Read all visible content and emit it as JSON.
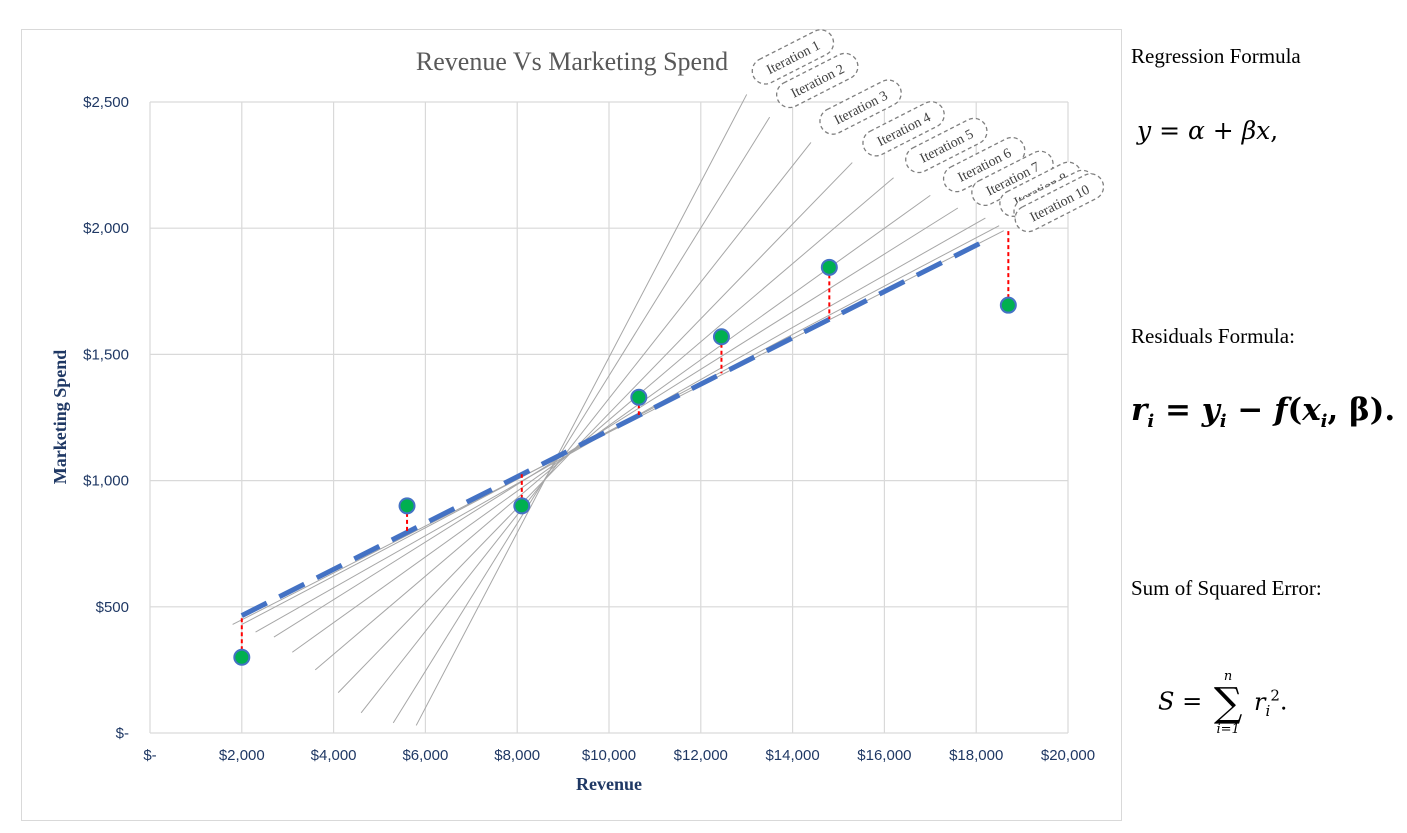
{
  "chart_data": {
    "type": "scatter",
    "title": "Revenue Vs Marketing Spend",
    "xlabel": "Revenue",
    "ylabel": "Marketing Spend",
    "xlim": [
      0,
      20000
    ],
    "ylim": [
      0,
      2500
    ],
    "x_ticks": [
      0,
      2000,
      4000,
      6000,
      8000,
      10000,
      12000,
      14000,
      16000,
      18000,
      20000
    ],
    "x_tick_labels": [
      "$-",
      "$2,000",
      "$4,000",
      "$6,000",
      "$8,000",
      "$10,000",
      "$12,000",
      "$14,000",
      "$16,000",
      "$18,000",
      "$20,000"
    ],
    "y_ticks": [
      0,
      500,
      1000,
      1500,
      2000,
      2500
    ],
    "y_tick_labels": [
      "$-",
      "$500",
      "$1,000",
      "$1,500",
      "$2,000",
      "$2,500"
    ],
    "grid": true,
    "points": [
      {
        "x": 2000,
        "y": 300
      },
      {
        "x": 5600,
        "y": 900
      },
      {
        "x": 8100,
        "y": 900
      },
      {
        "x": 10650,
        "y": 1330
      },
      {
        "x": 12450,
        "y": 1570
      },
      {
        "x": 14800,
        "y": 1845
      },
      {
        "x": 18700,
        "y": 1695
      }
    ],
    "fitted_line": {
      "x": [
        2000,
        18300
      ],
      "y": [
        465,
        1960
      ],
      "style": "dashed",
      "color": "#4472c4"
    },
    "residuals": [
      {
        "x": 2000,
        "y_point": 300,
        "y_fit": 465
      },
      {
        "x": 5600,
        "y_point": 900,
        "y_fit": 790
      },
      {
        "x": 8100,
        "y_point": 900,
        "y_fit": 1025
      },
      {
        "x": 10650,
        "y_point": 1330,
        "y_fit": 1260
      },
      {
        "x": 12450,
        "y_point": 1570,
        "y_fit": 1425
      },
      {
        "x": 14800,
        "y_point": 1845,
        "y_fit": 1640
      },
      {
        "x": 18700,
        "y_point": 1695,
        "y_fit": 1990
      }
    ],
    "iterations": [
      {
        "label": "Iteration 1",
        "x": [
          5800,
          13000
        ],
        "y": [
          30,
          2530
        ]
      },
      {
        "label": "Iteration 2",
        "x": [
          5300,
          13500
        ],
        "y": [
          40,
          2440
        ]
      },
      {
        "label": "Iteration 3",
        "x": [
          4600,
          14400
        ],
        "y": [
          80,
          2340
        ]
      },
      {
        "label": "Iteration 4",
        "x": [
          4100,
          15300
        ],
        "y": [
          160,
          2260
        ]
      },
      {
        "label": "Iteration 5",
        "x": [
          3600,
          16200
        ],
        "y": [
          250,
          2200
        ]
      },
      {
        "label": "Iteration 6",
        "x": [
          3100,
          17000
        ],
        "y": [
          320,
          2130
        ]
      },
      {
        "label": "Iteration 7",
        "x": [
          2700,
          17600
        ],
        "y": [
          380,
          2080
        ]
      },
      {
        "label": "Iteration 8",
        "x": [
          2300,
          18200
        ],
        "y": [
          400,
          2040
        ]
      },
      {
        "label": "Iteration 9",
        "x": [
          2000,
          18500
        ],
        "y": [
          430,
          2010
        ]
      },
      {
        "label": "Iteration 10",
        "x": [
          1800,
          18600
        ],
        "y": [
          430,
          1990
        ]
      }
    ],
    "colors": {
      "point_fill": "#00b050",
      "point_stroke": "#4472c4",
      "fit_line": "#4472c4",
      "residual": "#ff0000",
      "iteration_line": "#a6a6a6",
      "title": "#595959",
      "axis_label": "#1f3864"
    }
  },
  "side_panel": {
    "regression_label": "Regression Formula",
    "residuals_label": "Residuals Formula:",
    "sse_label": "Sum of Squared Error:"
  }
}
